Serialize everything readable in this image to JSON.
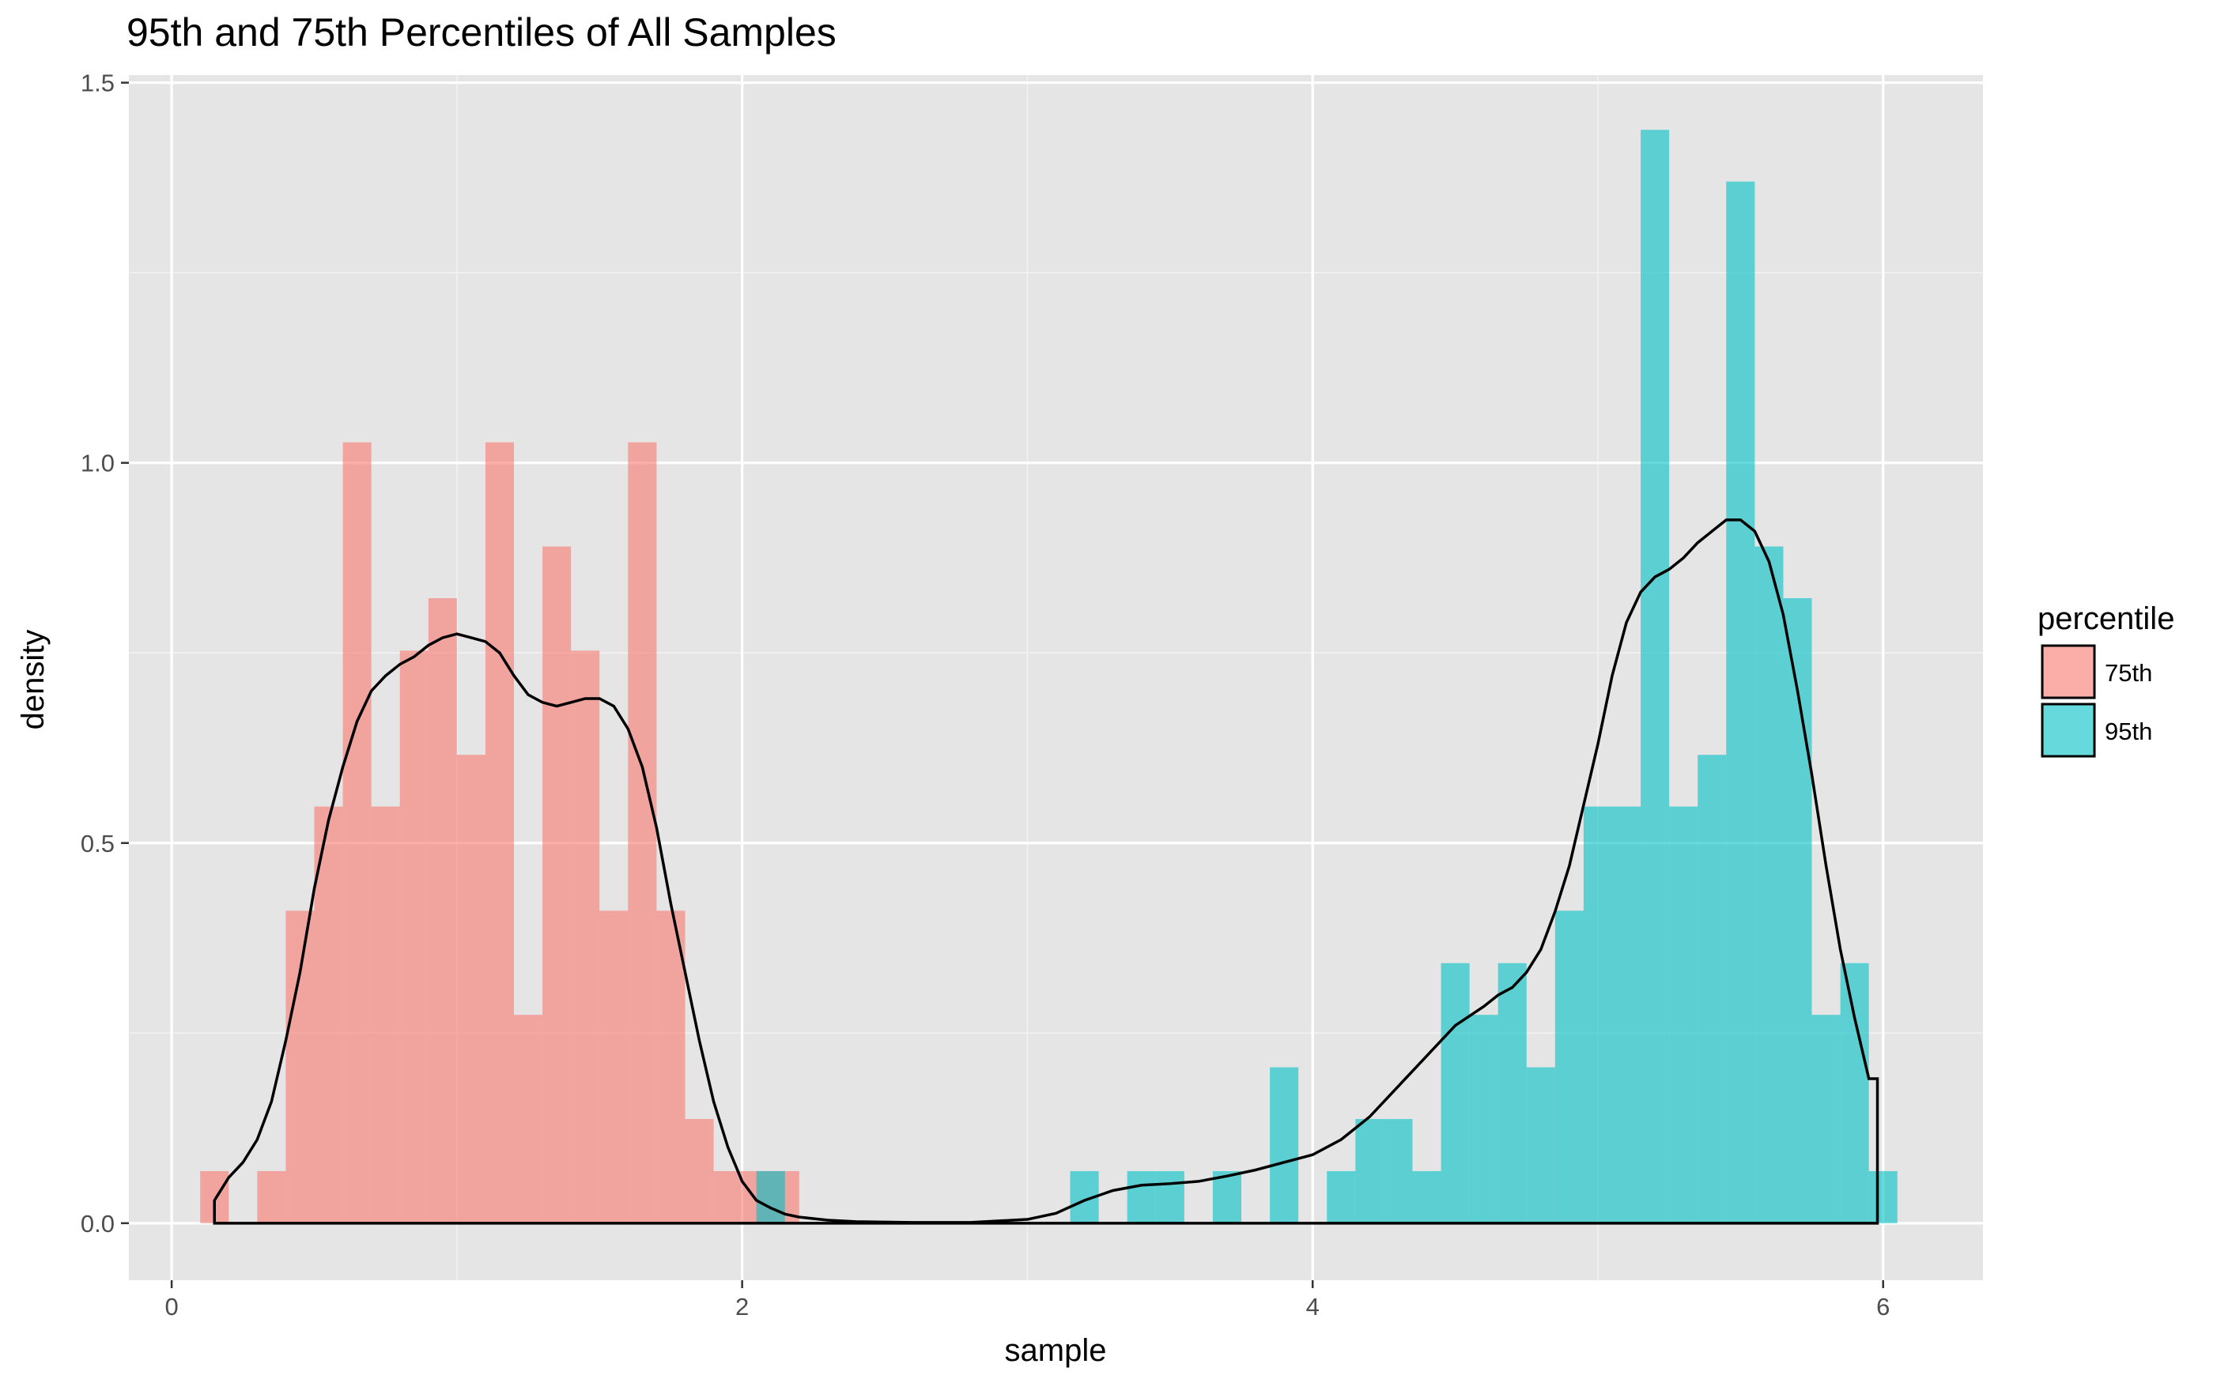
{
  "chart_data": {
    "type": "histogram",
    "title": "95th and 75th Percentiles of All Samples",
    "xlabel": "sample",
    "ylabel": "density",
    "xlim": [
      -0.15,
      6.35
    ],
    "ylim": [
      -0.075,
      1.51
    ],
    "x_ticks": [
      0,
      2,
      4,
      6
    ],
    "x_tick_labels": [
      "0",
      "2",
      "4",
      "6"
    ],
    "y_ticks": [
      0.0,
      0.5,
      1.0,
      1.5
    ],
    "y_tick_labels": [
      "0.0",
      "0.5",
      "1.0",
      "1.5"
    ],
    "y_minor_ticks": [
      0.25,
      0.75,
      1.25
    ],
    "x_minor_ticks": [
      1,
      3,
      5
    ],
    "grid": true,
    "bin_width": 0.1,
    "legend": {
      "title": "percentile",
      "position": "right",
      "entries": [
        {
          "label": "75th",
          "color": "#F8766D"
        },
        {
          "label": "95th",
          "color": "#00BFC4"
        }
      ]
    },
    "series": [
      {
        "name": "75th",
        "color": "#F8766D",
        "bins": [
          [
            0.1,
            0.2,
            0.0685
          ],
          [
            0.3,
            0.4,
            0.0685
          ],
          [
            0.4,
            0.5,
            0.411
          ],
          [
            0.5,
            0.6,
            0.548
          ],
          [
            0.6,
            0.7,
            1.027
          ],
          [
            0.7,
            0.8,
            0.548
          ],
          [
            0.8,
            0.9,
            0.753
          ],
          [
            0.9,
            1.0,
            0.822
          ],
          [
            1.0,
            1.1,
            0.616
          ],
          [
            1.1,
            1.2,
            1.027
          ],
          [
            1.2,
            1.3,
            0.274
          ],
          [
            1.3,
            1.4,
            0.89
          ],
          [
            1.4,
            1.5,
            0.753
          ],
          [
            1.5,
            1.6,
            0.411
          ],
          [
            1.6,
            1.7,
            1.027
          ],
          [
            1.7,
            1.8,
            0.411
          ],
          [
            1.8,
            1.9,
            0.137
          ],
          [
            1.9,
            2.0,
            0.0685
          ],
          [
            2.0,
            2.1,
            0.0685
          ],
          [
            2.1,
            2.2,
            0.0685
          ]
        ]
      },
      {
        "name": "95th",
        "color": "#00BFC4",
        "bins": [
          [
            2.05,
            2.15,
            0.0685
          ],
          [
            3.15,
            3.25,
            0.0685
          ],
          [
            3.35,
            3.45,
            0.0685
          ],
          [
            3.45,
            3.55,
            0.0685
          ],
          [
            3.65,
            3.75,
            0.0685
          ],
          [
            3.85,
            3.95,
            0.205
          ],
          [
            4.05,
            4.15,
            0.0685
          ],
          [
            4.15,
            4.25,
            0.137
          ],
          [
            4.25,
            4.35,
            0.137
          ],
          [
            4.35,
            4.45,
            0.0685
          ],
          [
            4.45,
            4.55,
            0.342
          ],
          [
            4.55,
            4.65,
            0.274
          ],
          [
            4.65,
            4.75,
            0.342
          ],
          [
            4.75,
            4.85,
            0.205
          ],
          [
            4.85,
            4.95,
            0.411
          ],
          [
            4.95,
            5.05,
            0.548
          ],
          [
            5.05,
            5.15,
            0.548
          ],
          [
            5.15,
            5.25,
            1.438
          ],
          [
            5.25,
            5.35,
            0.548
          ],
          [
            5.35,
            5.45,
            0.616
          ],
          [
            5.45,
            5.55,
            1.37
          ],
          [
            5.55,
            5.65,
            0.89
          ],
          [
            5.65,
            5.75,
            0.822
          ],
          [
            5.75,
            5.85,
            0.274
          ],
          [
            5.85,
            5.95,
            0.342
          ],
          [
            5.95,
            6.05,
            0.0685
          ]
        ]
      }
    ],
    "density_curve": {
      "color": "#000000",
      "points": [
        [
          0.15,
          0.0
        ],
        [
          0.15,
          0.03
        ],
        [
          0.2,
          0.06
        ],
        [
          0.25,
          0.08
        ],
        [
          0.3,
          0.11
        ],
        [
          0.35,
          0.16
        ],
        [
          0.4,
          0.24
        ],
        [
          0.45,
          0.33
        ],
        [
          0.5,
          0.44
        ],
        [
          0.55,
          0.53
        ],
        [
          0.6,
          0.6
        ],
        [
          0.65,
          0.66
        ],
        [
          0.7,
          0.7
        ],
        [
          0.75,
          0.72
        ],
        [
          0.8,
          0.735
        ],
        [
          0.85,
          0.745
        ],
        [
          0.9,
          0.76
        ],
        [
          0.95,
          0.77
        ],
        [
          1.0,
          0.775
        ],
        [
          1.05,
          0.77
        ],
        [
          1.1,
          0.765
        ],
        [
          1.15,
          0.75
        ],
        [
          1.2,
          0.72
        ],
        [
          1.25,
          0.695
        ],
        [
          1.3,
          0.685
        ],
        [
          1.35,
          0.68
        ],
        [
          1.4,
          0.685
        ],
        [
          1.45,
          0.69
        ],
        [
          1.5,
          0.69
        ],
        [
          1.55,
          0.68
        ],
        [
          1.6,
          0.65
        ],
        [
          1.65,
          0.6
        ],
        [
          1.7,
          0.52
        ],
        [
          1.75,
          0.42
        ],
        [
          1.8,
          0.33
        ],
        [
          1.85,
          0.24
        ],
        [
          1.9,
          0.16
        ],
        [
          1.95,
          0.1
        ],
        [
          2.0,
          0.055
        ],
        [
          2.05,
          0.03
        ],
        [
          2.1,
          0.02
        ],
        [
          2.15,
          0.012
        ],
        [
          2.2,
          0.008
        ],
        [
          2.3,
          0.004
        ],
        [
          2.4,
          0.002
        ],
        [
          2.6,
          0.001
        ],
        [
          2.8,
          0.001
        ],
        [
          3.0,
          0.005
        ],
        [
          3.1,
          0.013
        ],
        [
          3.2,
          0.03
        ],
        [
          3.3,
          0.043
        ],
        [
          3.4,
          0.05
        ],
        [
          3.5,
          0.052
        ],
        [
          3.6,
          0.055
        ],
        [
          3.7,
          0.062
        ],
        [
          3.8,
          0.07
        ],
        [
          3.9,
          0.08
        ],
        [
          4.0,
          0.09
        ],
        [
          4.1,
          0.11
        ],
        [
          4.2,
          0.14
        ],
        [
          4.3,
          0.18
        ],
        [
          4.4,
          0.22
        ],
        [
          4.5,
          0.26
        ],
        [
          4.6,
          0.285
        ],
        [
          4.65,
          0.3
        ],
        [
          4.7,
          0.31
        ],
        [
          4.75,
          0.33
        ],
        [
          4.8,
          0.36
        ],
        [
          4.85,
          0.41
        ],
        [
          4.9,
          0.47
        ],
        [
          4.95,
          0.55
        ],
        [
          5.0,
          0.63
        ],
        [
          5.05,
          0.72
        ],
        [
          5.1,
          0.79
        ],
        [
          5.15,
          0.83
        ],
        [
          5.2,
          0.85
        ],
        [
          5.25,
          0.86
        ],
        [
          5.3,
          0.875
        ],
        [
          5.35,
          0.895
        ],
        [
          5.4,
          0.91
        ],
        [
          5.45,
          0.925
        ],
        [
          5.5,
          0.925
        ],
        [
          5.55,
          0.91
        ],
        [
          5.6,
          0.87
        ],
        [
          5.65,
          0.8
        ],
        [
          5.7,
          0.7
        ],
        [
          5.75,
          0.59
        ],
        [
          5.8,
          0.47
        ],
        [
          5.85,
          0.36
        ],
        [
          5.9,
          0.27
        ],
        [
          5.95,
          0.19
        ],
        [
          5.98,
          0.19
        ],
        [
          5.98,
          0.0
        ],
        [
          0.15,
          0.0
        ]
      ]
    }
  }
}
